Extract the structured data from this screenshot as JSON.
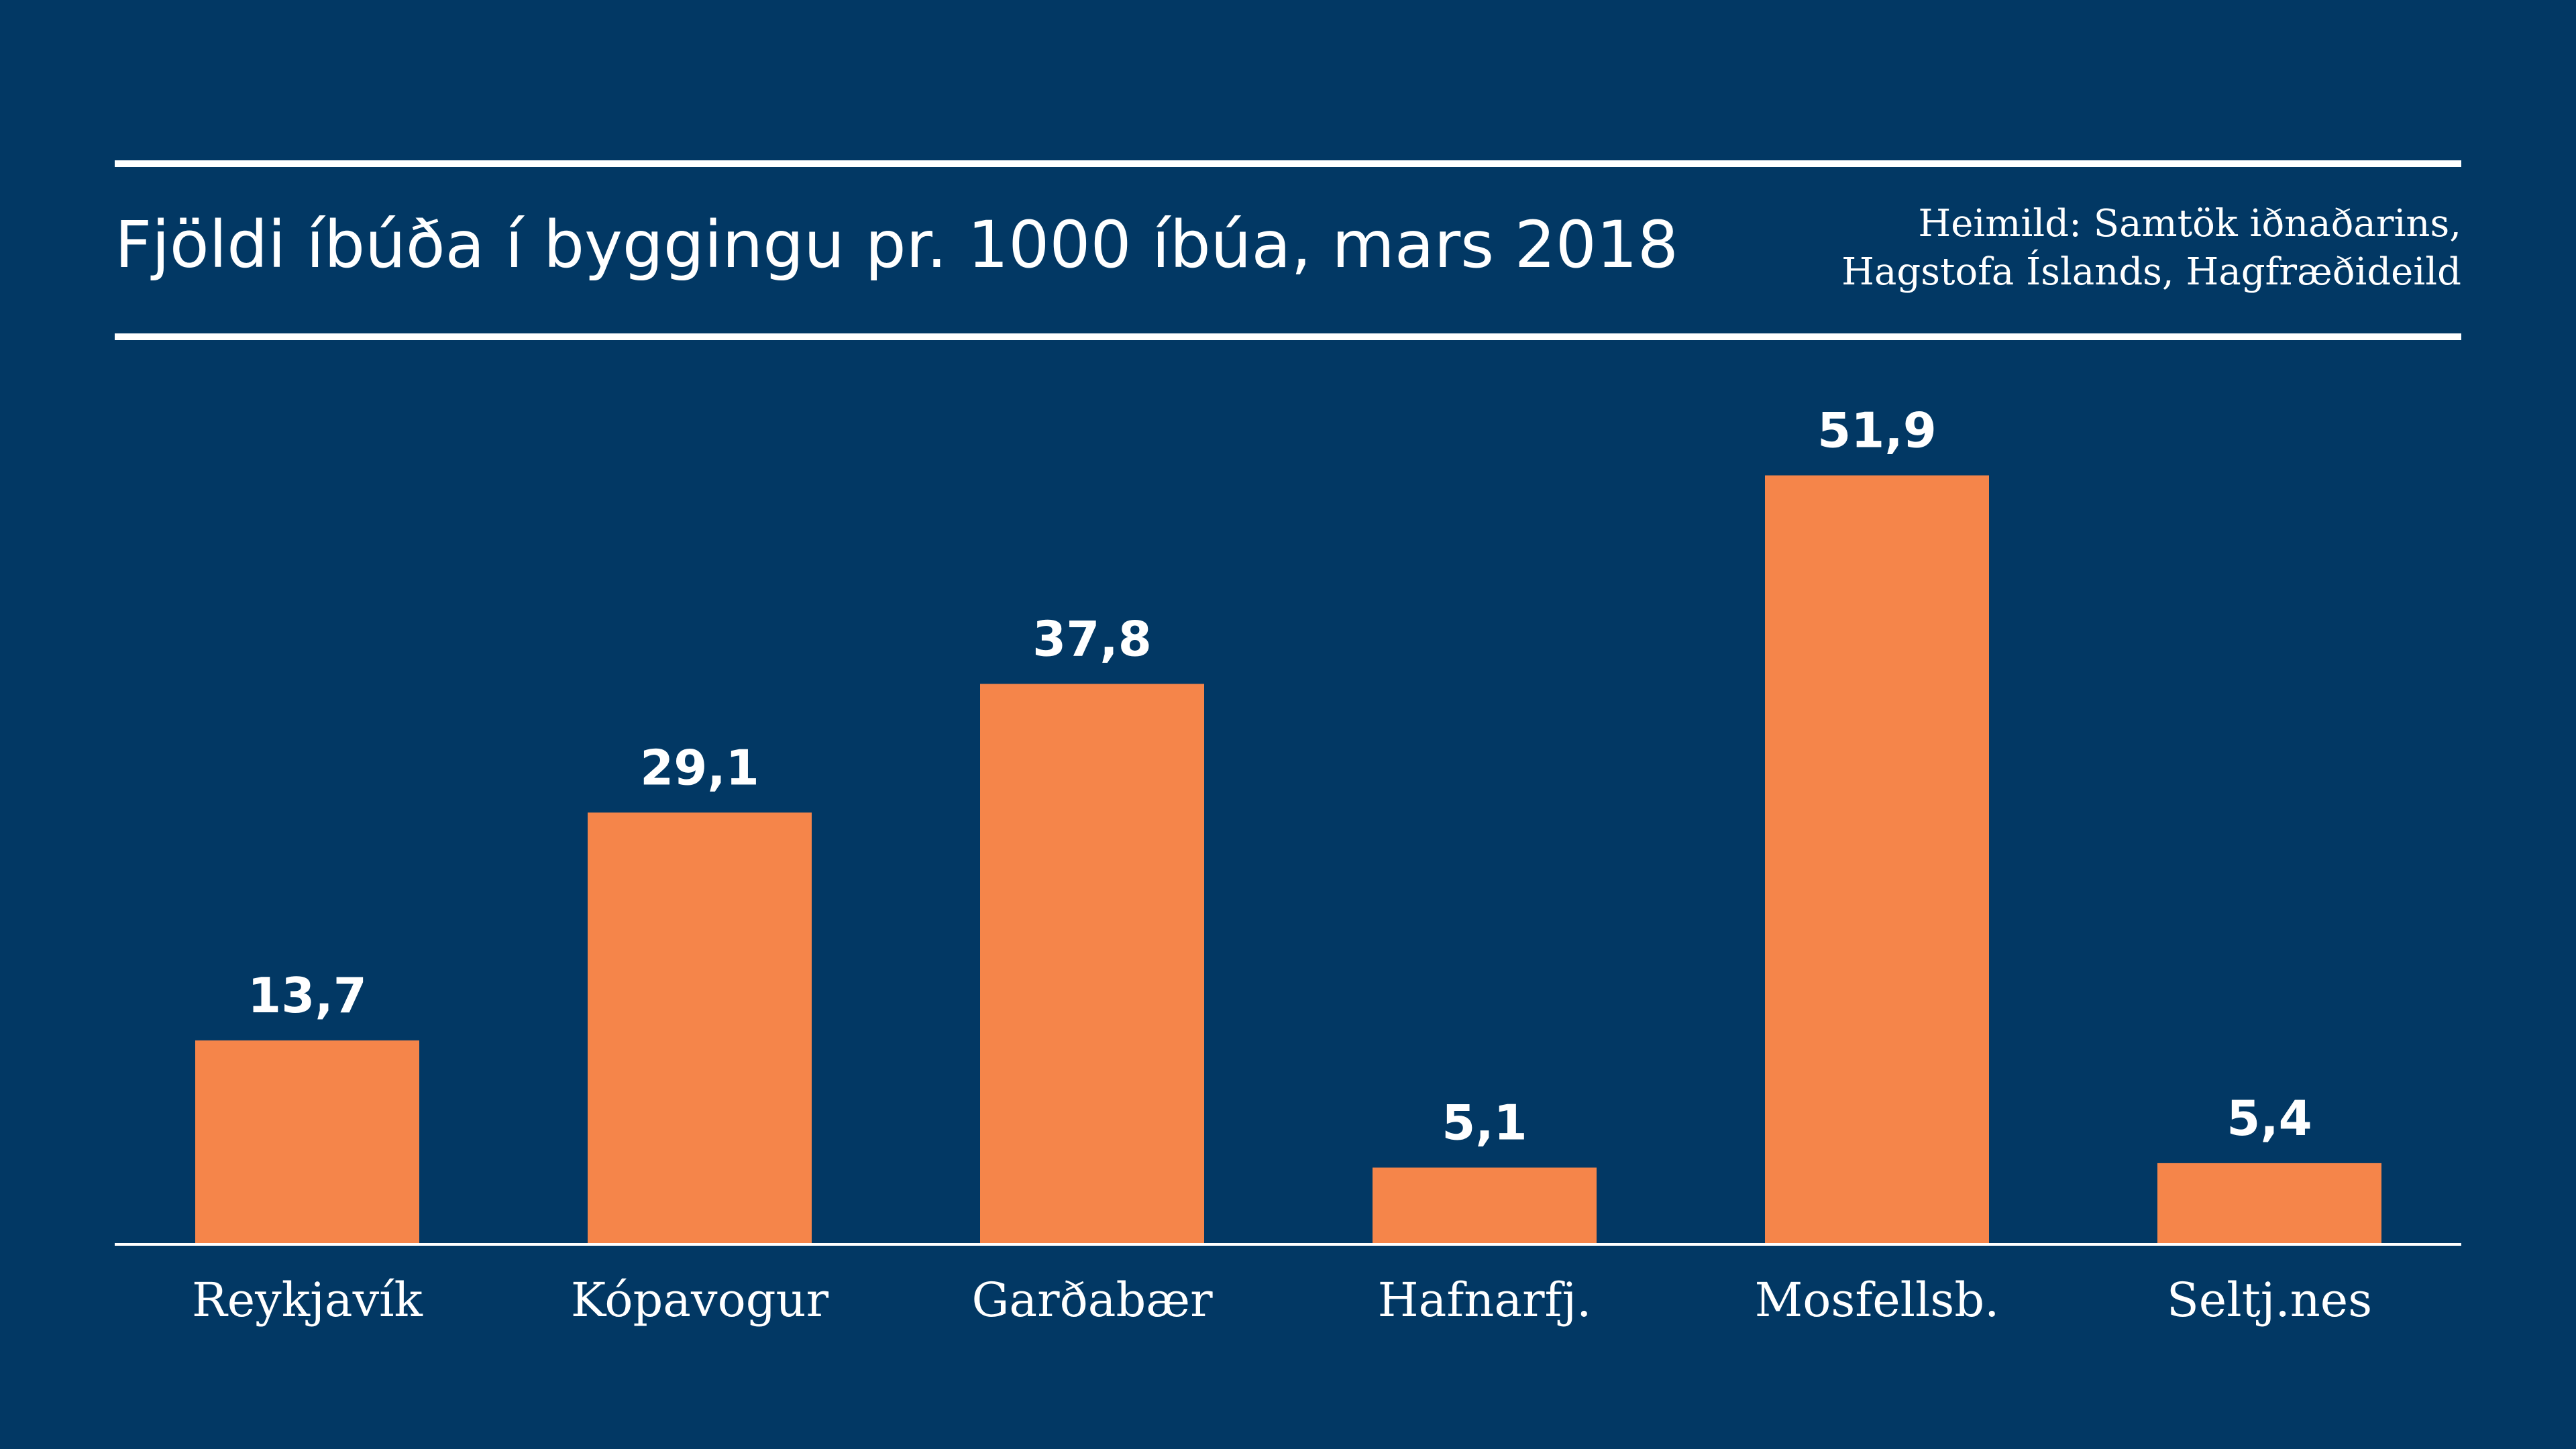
{
  "header": {
    "title": "Fjöldi íbúða í byggingu pr. 1000 íbúa, mars 2018",
    "source_line1": "Heimild: Samtök iðnaðarins,",
    "source_line2": "Hagstofa Íslands, Hagfræðideild"
  },
  "colors": {
    "background": "#023864",
    "bar": "#F5854A",
    "text": "#FFFFFF"
  },
  "chart_data": {
    "type": "bar",
    "title": "Fjöldi íbúða í byggingu pr. 1000 íbúa, mars 2018",
    "categories": [
      "Reykjavík",
      "Kópavogur",
      "Garðabær",
      "Hafnarfj.",
      "Mosfellsb.",
      "Seltj.nes"
    ],
    "values": [
      13.7,
      29.1,
      37.8,
      5.1,
      51.9,
      5.4
    ],
    "value_labels": [
      "13,7",
      "29,1",
      "37,8",
      "5,1",
      "51,9",
      "5,4"
    ],
    "xlabel": "",
    "ylabel": "",
    "ylim": [
      0,
      60
    ],
    "grid": false,
    "legend": "none"
  }
}
